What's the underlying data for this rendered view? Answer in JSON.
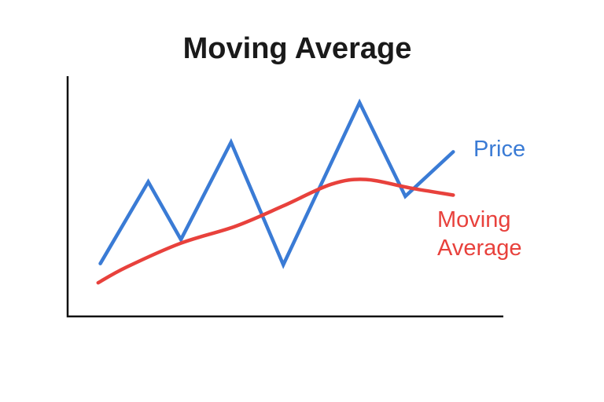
{
  "chart_data": {
    "type": "line",
    "title": "Moving Average",
    "xlim": [
      0,
      100
    ],
    "ylim": [
      0,
      100
    ],
    "series": [
      {
        "name": "Price",
        "color": "#3a7bd5",
        "x": [
          7.5,
          18.5,
          26,
          37.5,
          49.5,
          67,
          77.5,
          88.5
        ],
        "values": [
          22,
          56,
          32,
          72.5,
          21.5,
          89,
          50,
          68.5
        ]
      },
      {
        "name": "Moving Average",
        "color": "#e8413c",
        "smooth": true,
        "x": [
          7,
          13.5,
          26,
          38.5,
          49.5,
          60.5,
          68.5,
          78.5,
          88.5
        ],
        "values": [
          14,
          20.5,
          30.5,
          37.5,
          46,
          55,
          57,
          53.5,
          50.5
        ]
      }
    ]
  }
}
